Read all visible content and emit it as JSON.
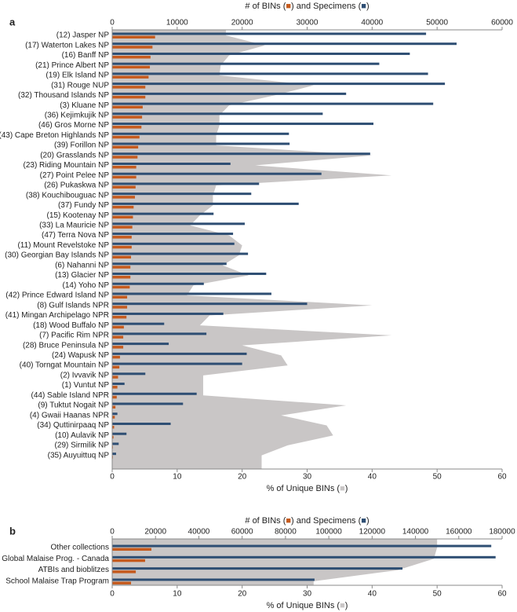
{
  "chart_data": [
    {
      "type": "bar",
      "panel": "a",
      "top_axis_label": [
        "# of BINs (",
        ") and Specimens (",
        ")"
      ],
      "bottom_axis_label": [
        "% of Unique BINs (",
        ")"
      ],
      "categories": [
        "(12) Jasper NP",
        "(17) Waterton Lakes NP",
        "(16) Banff NP",
        "(21) Prince Albert NP",
        "(19) Elk Island NP",
        "(31) Rouge NUP",
        "(32) Thousand Islands NP",
        "(3) Kluane NP",
        "(36) Kejimkujik NP",
        "(46) Gros Morne NP",
        "(43) Cape Breton Highlands NP",
        "(39) Forillon NP",
        "(20) Grasslands NP",
        "(23) Riding Mountain NP",
        "(27) Point Pelee NP",
        "(26) Pukaskwa NP",
        "(38) Kouchibouguac NP",
        "(37) Fundy NP",
        "(15) Kootenay NP",
        "(33) La Mauricie NP",
        "(47) Terra Nova NP",
        "(11) Mount Revelstoke NP",
        "(30) Georgian Bay Islands NP",
        "(6) Nahanni NP",
        "(13) Glacier NP",
        "(14) Yoho NP",
        "(42) Prince Edward Island NP",
        "(8) Gulf Islands NPR",
        "(41) Mingan Archipelago NPR",
        "(18) Wood Buffalo NP",
        "(7) Pacific Rim NPR",
        "(28) Bruce Peninsula NP",
        "(24) Wapusk NP",
        "(40) Torngat Mountain NP",
        "(2) Ivvavik NP",
        "(1) Vuntut NP",
        "(44) Sable Island NPR",
        "(9) Tuktut Nogait NP",
        "(4) Gwaii Haanas NPR",
        "(34) Quttinirpaaq NP",
        "(10) Aulavik NP",
        "(29) Sirmilik NP",
        "(35) Auyuittuq NP"
      ],
      "series": [
        {
          "color": "#2e4e73",
          "axis": "x2",
          "values": [
            48300,
            53000,
            45800,
            41100,
            48600,
            51200,
            36000,
            49400,
            32400,
            40200,
            27200,
            27300,
            39700,
            18200,
            32200,
            22600,
            21400,
            28700,
            15600,
            20400,
            18600,
            18800,
            20900,
            17600,
            23700,
            14100,
            24500,
            30000,
            17100,
            8000,
            14500,
            8700,
            20700,
            20000,
            5100,
            1900,
            13000,
            10900,
            800,
            9000,
            2200,
            1000,
            600
          ]
        },
        {
          "color": "#c55a1d",
          "axis": "x2",
          "values": [
            6600,
            6200,
            5900,
            5800,
            5600,
            5100,
            5100,
            4700,
            4600,
            4500,
            4200,
            4000,
            3900,
            3700,
            3700,
            3600,
            3500,
            3300,
            3200,
            3100,
            3000,
            3000,
            2900,
            2800,
            2800,
            2700,
            2300,
            2300,
            2200,
            1800,
            1700,
            1700,
            1200,
            1100,
            900,
            800,
            700,
            500,
            400,
            300,
            200,
            100,
            100
          ]
        },
        {
          "color": "#c9c6c6",
          "axis": "x",
          "type": "area",
          "values": [
            17.5,
            23.5,
            18,
            16.7,
            16.5,
            31,
            25,
            18,
            16.5,
            16.5,
            16,
            16,
            40,
            22,
            43,
            16,
            15.5,
            15.5,
            13.5,
            12,
            18,
            20,
            19.5,
            17,
            21,
            12.5,
            11.5,
            40,
            15,
            13.5,
            43,
            20,
            26,
            27,
            14,
            14,
            14,
            36,
            26,
            33,
            34,
            27,
            23
          ]
        }
      ],
      "x2lim": [
        0,
        60000
      ],
      "x2ticks": [
        0,
        10000,
        20000,
        30000,
        40000,
        50000,
        60000
      ],
      "xlim": [
        0,
        60
      ],
      "xticks": [
        0,
        10,
        20,
        30,
        40,
        50,
        60
      ]
    },
    {
      "type": "bar",
      "panel": "b",
      "top_axis_label": [
        "# of BINs (",
        ") and Specimens (",
        ")"
      ],
      "bottom_axis_label": [
        "% of Unique BINs (",
        ")"
      ],
      "categories": [
        "Other collections",
        "Global Malaise Prog. - Canada",
        "ATBIs and bioblitzes",
        "School Malaise Trap Program"
      ],
      "series": [
        {
          "color": "#2e4e73",
          "axis": "x2",
          "values": [
            175000,
            177000,
            134000,
            93400
          ]
        },
        {
          "color": "#c55a1d",
          "axis": "x2",
          "values": [
            18100,
            15200,
            10900,
            8700
          ]
        },
        {
          "color": "#c9c6c6",
          "axis": "x",
          "type": "area",
          "values": [
            50,
            49.5,
            44,
            31
          ]
        }
      ],
      "x2lim": [
        0,
        180000
      ],
      "x2ticks": [
        0,
        20000,
        40000,
        60000,
        80000,
        100000,
        120000,
        140000,
        160000,
        180000
      ],
      "xlim": [
        0,
        60
      ],
      "xticks": [
        0,
        10,
        20,
        30,
        40,
        50,
        60
      ]
    }
  ]
}
